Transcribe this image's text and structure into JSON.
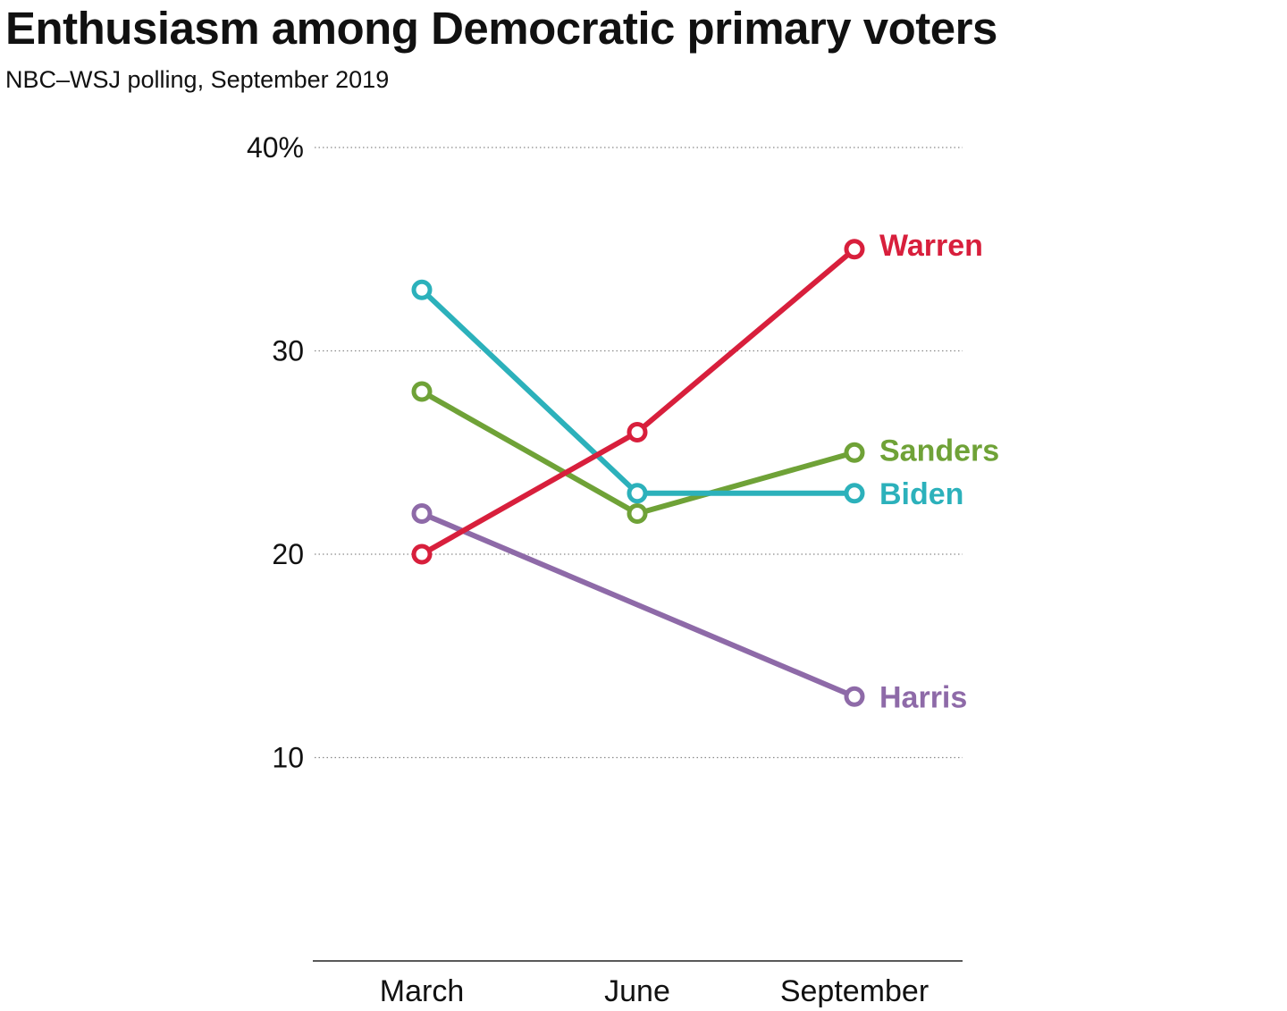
{
  "header": {
    "title": "Enthusiasm among Democratic primary voters",
    "subtitle": "NBC–WSJ polling, September 2019"
  },
  "chart_data": {
    "type": "line",
    "title": "Enthusiasm among Democratic primary voters",
    "subtitle": "NBC–WSJ polling, September 2019",
    "categories": [
      "March",
      "June",
      "September"
    ],
    "y_ticks": [
      {
        "value": 40,
        "label": "40%"
      },
      {
        "value": 30,
        "label": "30"
      },
      {
        "value": 20,
        "label": "20"
      },
      {
        "value": 10,
        "label": "10"
      }
    ],
    "ylim": [
      0,
      40
    ],
    "grid": true,
    "legend": "direct labels at line ends",
    "series": [
      {
        "name": "Harris",
        "values": [
          22,
          null,
          13
        ],
        "color": "#8e6aa8"
      },
      {
        "name": "Sanders",
        "values": [
          28,
          22,
          25
        ],
        "color": "#6fa237"
      },
      {
        "name": "Biden",
        "values": [
          33,
          23,
          23
        ],
        "color": "#2cb1bb"
      },
      {
        "name": "Warren",
        "values": [
          20,
          26,
          35
        ],
        "color": "#d81f3c"
      }
    ]
  }
}
